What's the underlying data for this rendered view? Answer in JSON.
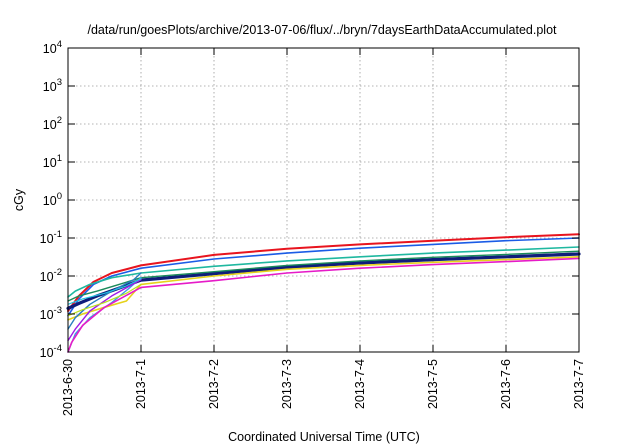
{
  "chart_data": {
    "type": "line",
    "title": "/data/run/goesPlots/archive/2013-07-06/flux/../bryn/7daysEarthDataAccumulated.plot",
    "xlabel": "Coordinated Universal Time (UTC)",
    "ylabel": "cGy",
    "yscale": "log",
    "ylim": [
      0.0001,
      10000
    ],
    "xlim": [
      0,
      7
    ],
    "grid": true,
    "x_ticks": [
      {
        "value": 0,
        "label": "2013-6-30"
      },
      {
        "value": 1,
        "label": "2013-7-1"
      },
      {
        "value": 2,
        "label": "2013-7-2"
      },
      {
        "value": 3,
        "label": "2013-7-3"
      },
      {
        "value": 4,
        "label": "2013-7-4"
      },
      {
        "value": 5,
        "label": "2013-7-5"
      },
      {
        "value": 6,
        "label": "2013-7-6"
      },
      {
        "value": 7,
        "label": "2013-7-7"
      }
    ],
    "y_ticks": [
      {
        "value": 0.0001,
        "base": "10",
        "exp": "-4"
      },
      {
        "value": 0.001,
        "base": "10",
        "exp": "-3"
      },
      {
        "value": 0.01,
        "base": "10",
        "exp": "-2"
      },
      {
        "value": 0.1,
        "base": "10",
        "exp": "-1"
      },
      {
        "value": 1,
        "base": "10",
        "exp": "0"
      },
      {
        "value": 10,
        "base": "10",
        "exp": "1"
      },
      {
        "value": 100,
        "base": "10",
        "exp": "2"
      },
      {
        "value": 1000,
        "base": "10",
        "exp": "3"
      },
      {
        "value": 10000,
        "base": "10",
        "exp": "4"
      }
    ],
    "x_units": "days since 2013-6-30",
    "series": [
      {
        "color": "#e8141e",
        "width": 2.0,
        "x": [
          0,
          0.15,
          0.35,
          0.6,
          1,
          2,
          3,
          4,
          5,
          6,
          7
        ],
        "y": [
          0.0012,
          0.003,
          0.007,
          0.012,
          0.019,
          0.036,
          0.052,
          0.068,
          0.085,
          0.105,
          0.125
        ]
      },
      {
        "color": "#1b5ce6",
        "width": 1.6,
        "x": [
          0,
          0.15,
          0.35,
          0.6,
          1,
          2,
          3,
          4,
          5,
          6,
          7
        ],
        "y": [
          0.0009,
          0.0025,
          0.006,
          0.01,
          0.016,
          0.028,
          0.04,
          0.054,
          0.068,
          0.085,
          0.1
        ]
      },
      {
        "color": "#1fb8a0",
        "width": 1.6,
        "x": [
          0,
          0.1,
          0.3,
          0.6,
          1,
          2,
          3,
          4,
          5,
          6,
          7
        ],
        "y": [
          0.0028,
          0.004,
          0.006,
          0.009,
          0.012,
          0.018,
          0.025,
          0.032,
          0.04,
          0.048,
          0.058
        ]
      },
      {
        "color": "#4b2a8a",
        "width": 1.4,
        "x": [
          0,
          0.15,
          0.4,
          0.7,
          1,
          2,
          3,
          4,
          5,
          6,
          7
        ],
        "y": [
          0.0015,
          0.002,
          0.003,
          0.005,
          0.008,
          0.012,
          0.018,
          0.023,
          0.028,
          0.033,
          0.04
        ]
      },
      {
        "color": "#0f1d7a",
        "width": 3.2,
        "x": [
          0,
          0.15,
          0.4,
          0.7,
          1,
          2,
          3,
          4,
          5,
          6,
          7
        ],
        "y": [
          0.0014,
          0.0019,
          0.003,
          0.0048,
          0.0078,
          0.0115,
          0.017,
          0.022,
          0.027,
          0.032,
          0.038
        ]
      },
      {
        "color": "#1a8a5a",
        "width": 1.4,
        "x": [
          0,
          0.15,
          0.4,
          0.7,
          1,
          2,
          3,
          4,
          5,
          6,
          7
        ],
        "y": [
          0.0022,
          0.003,
          0.004,
          0.006,
          0.009,
          0.013,
          0.019,
          0.025,
          0.031,
          0.037,
          0.045
        ]
      },
      {
        "color": "#3a9be6",
        "width": 1.4,
        "x": [
          0,
          0.1,
          0.3,
          0.6,
          0.85,
          1
        ],
        "y": [
          0.0001,
          0.0003,
          0.0008,
          0.002,
          0.005,
          0.009
        ]
      },
      {
        "color": "#e6d21b",
        "width": 1.6,
        "x": [
          0,
          0.2,
          0.5,
          0.8,
          1,
          2,
          3,
          4,
          5,
          6,
          7
        ],
        "y": [
          0.0007,
          0.001,
          0.0015,
          0.0022,
          0.006,
          0.01,
          0.015,
          0.019,
          0.023,
          0.027,
          0.032
        ]
      },
      {
        "color": "#e61bc8",
        "width": 1.6,
        "x": [
          0,
          0.05,
          0.2,
          0.5,
          1,
          2,
          3,
          4,
          5,
          6,
          7
        ],
        "y": [
          0.0001,
          0.00018,
          0.0005,
          0.0015,
          0.005,
          0.0075,
          0.012,
          0.016,
          0.02,
          0.024,
          0.029
        ]
      },
      {
        "color": "#a01be6",
        "width": 1.4,
        "x": [
          0,
          0.1,
          0.3,
          0.6,
          1
        ],
        "y": [
          0.0002,
          0.0004,
          0.0012,
          0.003,
          0.008
        ]
      },
      {
        "color": "#2a7fbf",
        "width": 1.4,
        "x": [
          0,
          0.1,
          0.3,
          0.6,
          0.9,
          1
        ],
        "y": [
          0.0004,
          0.0008,
          0.0018,
          0.004,
          0.008,
          0.012
        ]
      },
      {
        "color": "#22c2e0",
        "width": 1.2,
        "x": [
          0,
          0.2,
          0.5,
          0.8,
          1
        ],
        "y": [
          0.0018,
          0.0025,
          0.0035,
          0.0055,
          0.0085
        ]
      },
      {
        "color": "#b8e01b",
        "width": 1.2,
        "x": [
          0,
          0.2,
          0.5,
          0.8,
          1
        ],
        "y": [
          0.0009,
          0.0013,
          0.002,
          0.0035,
          0.006
        ]
      }
    ]
  }
}
